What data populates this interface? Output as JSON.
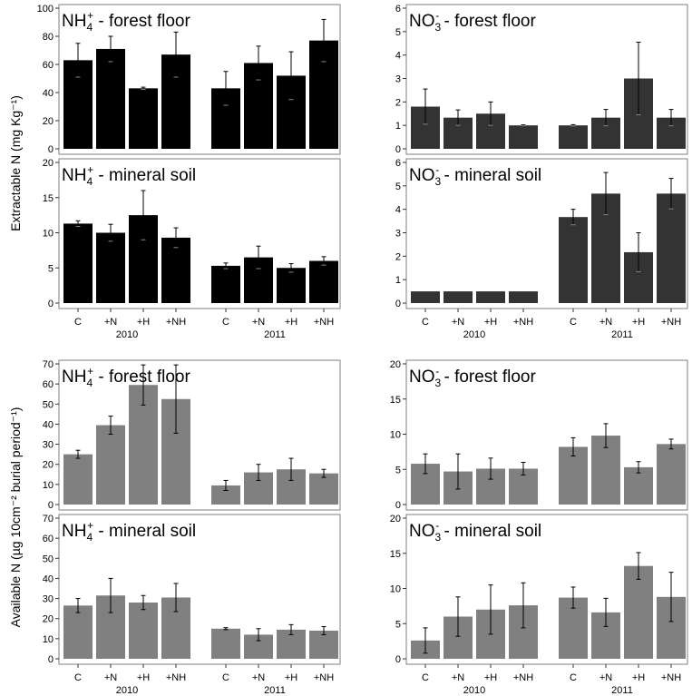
{
  "figure": {
    "ylabel_top": "Extractable N (mg Kg⁻¹)",
    "ylabel_bottom": "Available N (µg 10cm⁻² burial period⁻¹)"
  },
  "colors": {
    "bar_black": "#000000",
    "bar_dark": "#333333",
    "bar_gray": "#808080"
  },
  "chart_data": [
    {
      "type": "bar",
      "title": "NH₄⁺ - forest floor",
      "years": [
        "2010",
        "2011"
      ],
      "categories": [
        "C",
        "+N",
        "+H",
        "+NH"
      ],
      "ylim": [
        0,
        100
      ],
      "yticks": [
        0,
        20,
        40,
        60,
        80,
        100
      ],
      "series": [
        {
          "group": "2010",
          "values": [
            63,
            71,
            43,
            67
          ],
          "errors": [
            12,
            9,
            0.8,
            16
          ]
        },
        {
          "group": "2011",
          "values": [
            43,
            61,
            52,
            77
          ],
          "errors": [
            12,
            12,
            17,
            15
          ]
        }
      ]
    },
    {
      "type": "bar",
      "title": "NO₃⁻ - forest floor",
      "years": [
        "2010",
        "2011"
      ],
      "categories": [
        "C",
        "+N",
        "+H",
        "+NH"
      ],
      "ylim": [
        0,
        6
      ],
      "yticks": [
        0,
        1,
        2,
        3,
        4,
        5,
        6
      ],
      "series": [
        {
          "group": "2010",
          "values": [
            1.8,
            1.33,
            1.5,
            1.0
          ],
          "errors": [
            0.75,
            0.33,
            0.5,
            0.02
          ]
        },
        {
          "group": "2011",
          "values": [
            1.0,
            1.33,
            3.0,
            1.33
          ],
          "errors": [
            0.03,
            0.35,
            1.55,
            0.35
          ]
        }
      ]
    },
    {
      "type": "bar",
      "title": "NH₄⁺ - mineral soil",
      "years": [
        "2010",
        "2011"
      ],
      "categories": [
        "C",
        "+N",
        "+H",
        "+NH"
      ],
      "ylim": [
        0,
        20
      ],
      "yticks": [
        0,
        5,
        10,
        15,
        20
      ],
      "series": [
        {
          "group": "2010",
          "values": [
            11.3,
            10.0,
            12.5,
            9.3
          ],
          "errors": [
            0.4,
            1.2,
            3.5,
            1.4
          ]
        },
        {
          "group": "2011",
          "values": [
            5.3,
            6.5,
            5.0,
            6.0
          ],
          "errors": [
            0.4,
            1.6,
            0.6,
            0.6
          ]
        }
      ]
    },
    {
      "type": "bar",
      "title": "NO₃⁻ - mineral soil",
      "years": [
        "2010",
        "2011"
      ],
      "categories": [
        "C",
        "+N",
        "+H",
        "+NH"
      ],
      "ylim": [
        0,
        6
      ],
      "yticks": [
        0,
        1,
        2,
        3,
        4,
        5,
        6
      ],
      "series": [
        {
          "group": "2010",
          "values": [
            0.5,
            0.5,
            0.5,
            0.5
          ],
          "errors": [
            0,
            0,
            0,
            0
          ]
        },
        {
          "group": "2011",
          "values": [
            3.67,
            4.67,
            2.17,
            4.67
          ],
          "errors": [
            0.33,
            0.9,
            0.83,
            0.65
          ]
        }
      ]
    },
    {
      "type": "bar",
      "title": "NH₄⁺ - forest floor",
      "years": [
        "2010",
        "2011"
      ],
      "categories": [
        "C",
        "+N",
        "+H",
        "+NH"
      ],
      "ylim": [
        0,
        70
      ],
      "yticks": [
        0,
        10,
        20,
        30,
        40,
        50,
        60,
        70
      ],
      "series": [
        {
          "group": "2010",
          "values": [
            25,
            39.5,
            59.5,
            52.5
          ],
          "errors": [
            2,
            4.5,
            10,
            17
          ]
        },
        {
          "group": "2011",
          "values": [
            9.5,
            16,
            17.5,
            15.5
          ],
          "errors": [
            2.5,
            4,
            5.5,
            2
          ]
        }
      ]
    },
    {
      "type": "bar",
      "title": "NO₃⁻ - forest floor",
      "years": [
        "2010",
        "2011"
      ],
      "categories": [
        "C",
        "+N",
        "+H",
        "+NH"
      ],
      "ylim": [
        0,
        20
      ],
      "yticks": [
        0,
        5,
        10,
        15,
        20
      ],
      "series": [
        {
          "group": "2010",
          "values": [
            5.8,
            4.7,
            5.1,
            5.1
          ],
          "errors": [
            1.4,
            2.5,
            1.5,
            0.9
          ]
        },
        {
          "group": "2011",
          "values": [
            8.2,
            9.8,
            5.3,
            8.6
          ],
          "errors": [
            1.3,
            1.7,
            0.8,
            0.7
          ]
        }
      ]
    },
    {
      "type": "bar",
      "title": "NH₄⁺ - mineral soil",
      "years": [
        "2010",
        "2011"
      ],
      "categories": [
        "C",
        "+N",
        "+H",
        "+NH"
      ],
      "ylim": [
        0,
        70
      ],
      "yticks": [
        0,
        10,
        20,
        30,
        40,
        50,
        60,
        70
      ],
      "series": [
        {
          "group": "2010",
          "values": [
            26.5,
            31.5,
            28,
            30.5
          ],
          "errors": [
            3.5,
            8.5,
            3.5,
            7
          ]
        },
        {
          "group": "2011",
          "values": [
            15,
            12,
            14.5,
            14
          ],
          "errors": [
            0.5,
            3,
            2.5,
            2
          ]
        }
      ]
    },
    {
      "type": "bar",
      "title": "NO₃⁻ - mineral soil",
      "years": [
        "2010",
        "2011"
      ],
      "categories": [
        "C",
        "+N",
        "+H",
        "+NH"
      ],
      "ylim": [
        0,
        20
      ],
      "yticks": [
        0,
        5,
        10,
        15,
        20
      ],
      "series": [
        {
          "group": "2010",
          "values": [
            2.6,
            6.0,
            7.0,
            7.6
          ],
          "errors": [
            1.8,
            2.8,
            3.5,
            3.2
          ]
        },
        {
          "group": "2011",
          "values": [
            8.7,
            6.6,
            13.2,
            8.8
          ],
          "errors": [
            1.5,
            2.0,
            1.9,
            3.5
          ]
        }
      ]
    }
  ]
}
